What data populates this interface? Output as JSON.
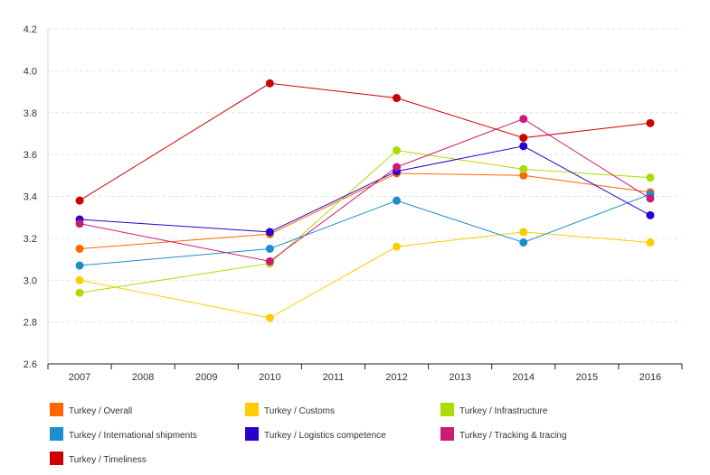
{
  "chart_data": {
    "type": "line",
    "x": [
      2007,
      2008,
      2009,
      2010,
      2011,
      2012,
      2013,
      2014,
      2015,
      2016
    ],
    "ylim": [
      2.6,
      4.2
    ],
    "yticks": [
      "2.6",
      "2.8",
      "3.0",
      "3.2",
      "3.4",
      "3.6",
      "3.8",
      "4.0",
      "4.2"
    ],
    "xticks": [
      "2007",
      "2008",
      "2009",
      "2010",
      "2011",
      "2012",
      "2013",
      "2014",
      "2015",
      "2016"
    ],
    "grid": true,
    "legend_position": "bottom",
    "series": [
      {
        "name": "Turkey / Overall",
        "color": "#ff6600",
        "points": [
          [
            2007,
            3.15
          ],
          [
            2010,
            3.22
          ],
          [
            2012,
            3.51
          ],
          [
            2014,
            3.5
          ],
          [
            2016,
            3.42
          ]
        ]
      },
      {
        "name": "Turkey / Customs",
        "color": "#ffcc00",
        "points": [
          [
            2007,
            3.0
          ],
          [
            2010,
            2.82
          ],
          [
            2012,
            3.16
          ],
          [
            2014,
            3.23
          ],
          [
            2016,
            3.18
          ]
        ]
      },
      {
        "name": "Turkey / Infrastructure",
        "color": "#aadd00",
        "points": [
          [
            2007,
            2.94
          ],
          [
            2010,
            3.08
          ],
          [
            2012,
            3.62
          ],
          [
            2014,
            3.53
          ],
          [
            2016,
            3.49
          ]
        ]
      },
      {
        "name": "Turkey / International shipments",
        "color": "#1a8fcc",
        "points": [
          [
            2007,
            3.07
          ],
          [
            2010,
            3.15
          ],
          [
            2012,
            3.38
          ],
          [
            2014,
            3.18
          ],
          [
            2016,
            3.41
          ]
        ]
      },
      {
        "name": "Turkey / Logistics competence",
        "color": "#2b00cc",
        "points": [
          [
            2007,
            3.29
          ],
          [
            2010,
            3.23
          ],
          [
            2012,
            3.52
          ],
          [
            2014,
            3.64
          ],
          [
            2016,
            3.31
          ]
        ]
      },
      {
        "name": "Turkey / Tracking & tracing",
        "color": "#cc1a77",
        "points": [
          [
            2007,
            3.27
          ],
          [
            2010,
            3.09
          ],
          [
            2012,
            3.54
          ],
          [
            2014,
            3.77
          ],
          [
            2016,
            3.39
          ]
        ]
      },
      {
        "name": "Turkey / Timeliness",
        "color": "#cc0000",
        "points": [
          [
            2007,
            3.38
          ],
          [
            2010,
            3.94
          ],
          [
            2012,
            3.87
          ],
          [
            2014,
            3.68
          ],
          [
            2016,
            3.75
          ]
        ]
      }
    ]
  }
}
